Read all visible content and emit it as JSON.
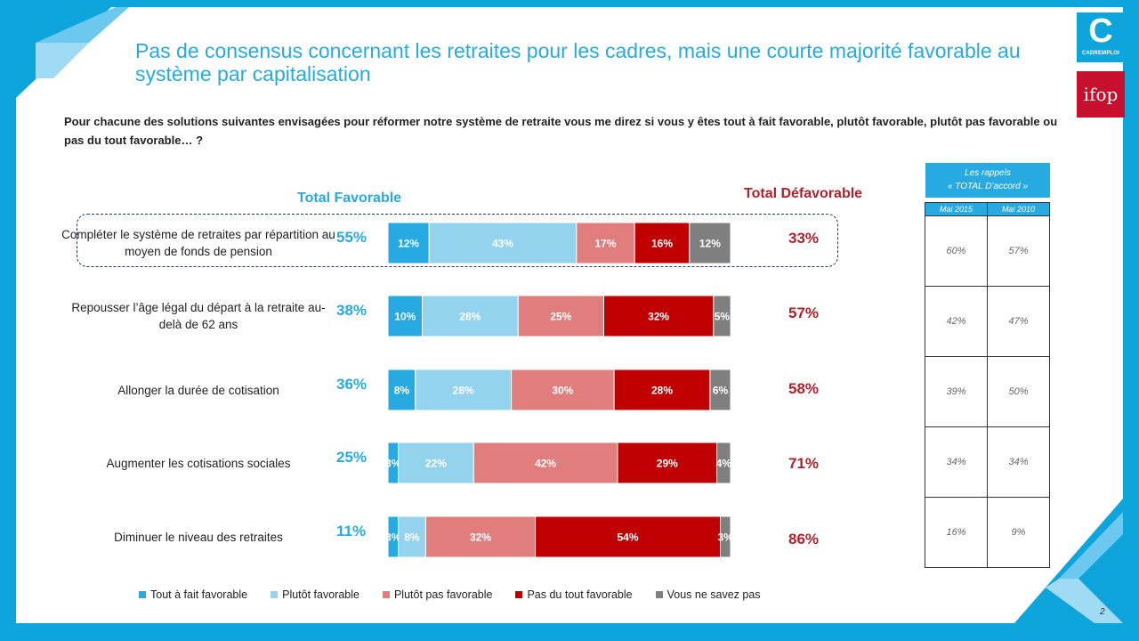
{
  "title": "Pas de consensus concernant les retraites pour les cadres, mais une courte majorité favorable au système par capitalisation",
  "question": "Pour chacune des solutions suivantes envisagées pour réformer notre système de retraite vous me direz si vous y êtes tout à fait favorable, plutôt favorable, plutôt pas favorable ou pas du tout favorable… ?",
  "logos": {
    "cadremploi_glyph": "C",
    "cadremploi_name": "CADREMPLOI",
    "ifop": "ifop"
  },
  "headers": {
    "favorable": "Total Favorable",
    "defavorable": "Total Défavorable"
  },
  "chart_data": {
    "type": "bar",
    "orientation": "horizontal",
    "stacked": true,
    "unit": "%",
    "categories": [
      "Compléter le système de retraites par répartition au moyen de fonds de pension",
      "Repousser l’âge légal du départ à la retraite au-delà de 62 ans",
      "Allonger la durée de cotisation",
      "Augmenter les cotisations sociales",
      "Diminuer le niveau des retraites"
    ],
    "series": [
      {
        "name": "Tout à fait favorable",
        "color": "#27a9e1",
        "values": [
          12,
          10,
          8,
          3,
          3
        ]
      },
      {
        "name": "Plutôt favorable",
        "color": "#94d3ee",
        "values": [
          43,
          28,
          28,
          22,
          8
        ]
      },
      {
        "name": "Plutôt pas favorable",
        "color": "#e07e7e",
        "values": [
          17,
          25,
          30,
          42,
          32
        ]
      },
      {
        "name": "Pas du tout favorable",
        "color": "#c00000",
        "values": [
          16,
          32,
          28,
          29,
          54
        ]
      },
      {
        "name": "Vous ne savez pas",
        "color": "#7f7f7f",
        "values": [
          12,
          5,
          6,
          4,
          3
        ]
      }
    ],
    "total_favorable": [
      55,
      38,
      36,
      25,
      11
    ],
    "total_defavorable": [
      33,
      57,
      58,
      71,
      86
    ],
    "legend_position": "bottom",
    "highlighted_row": 0
  },
  "recall": {
    "heading_line1": "Les rappels",
    "heading_line2": "« TOTAL D’accord »",
    "columns": [
      "Mai 2015",
      "Mai 2010"
    ],
    "rows": [
      [
        "60%",
        "57%"
      ],
      [
        "42%",
        "47%"
      ],
      [
        "39%",
        "50%"
      ],
      [
        "34%",
        "34%"
      ],
      [
        "16%",
        "9%"
      ]
    ]
  },
  "page_number": "2",
  "colors": {
    "accent": "#27a9e1",
    "frame": "#0ea5dc",
    "negative": "#b0202a"
  }
}
